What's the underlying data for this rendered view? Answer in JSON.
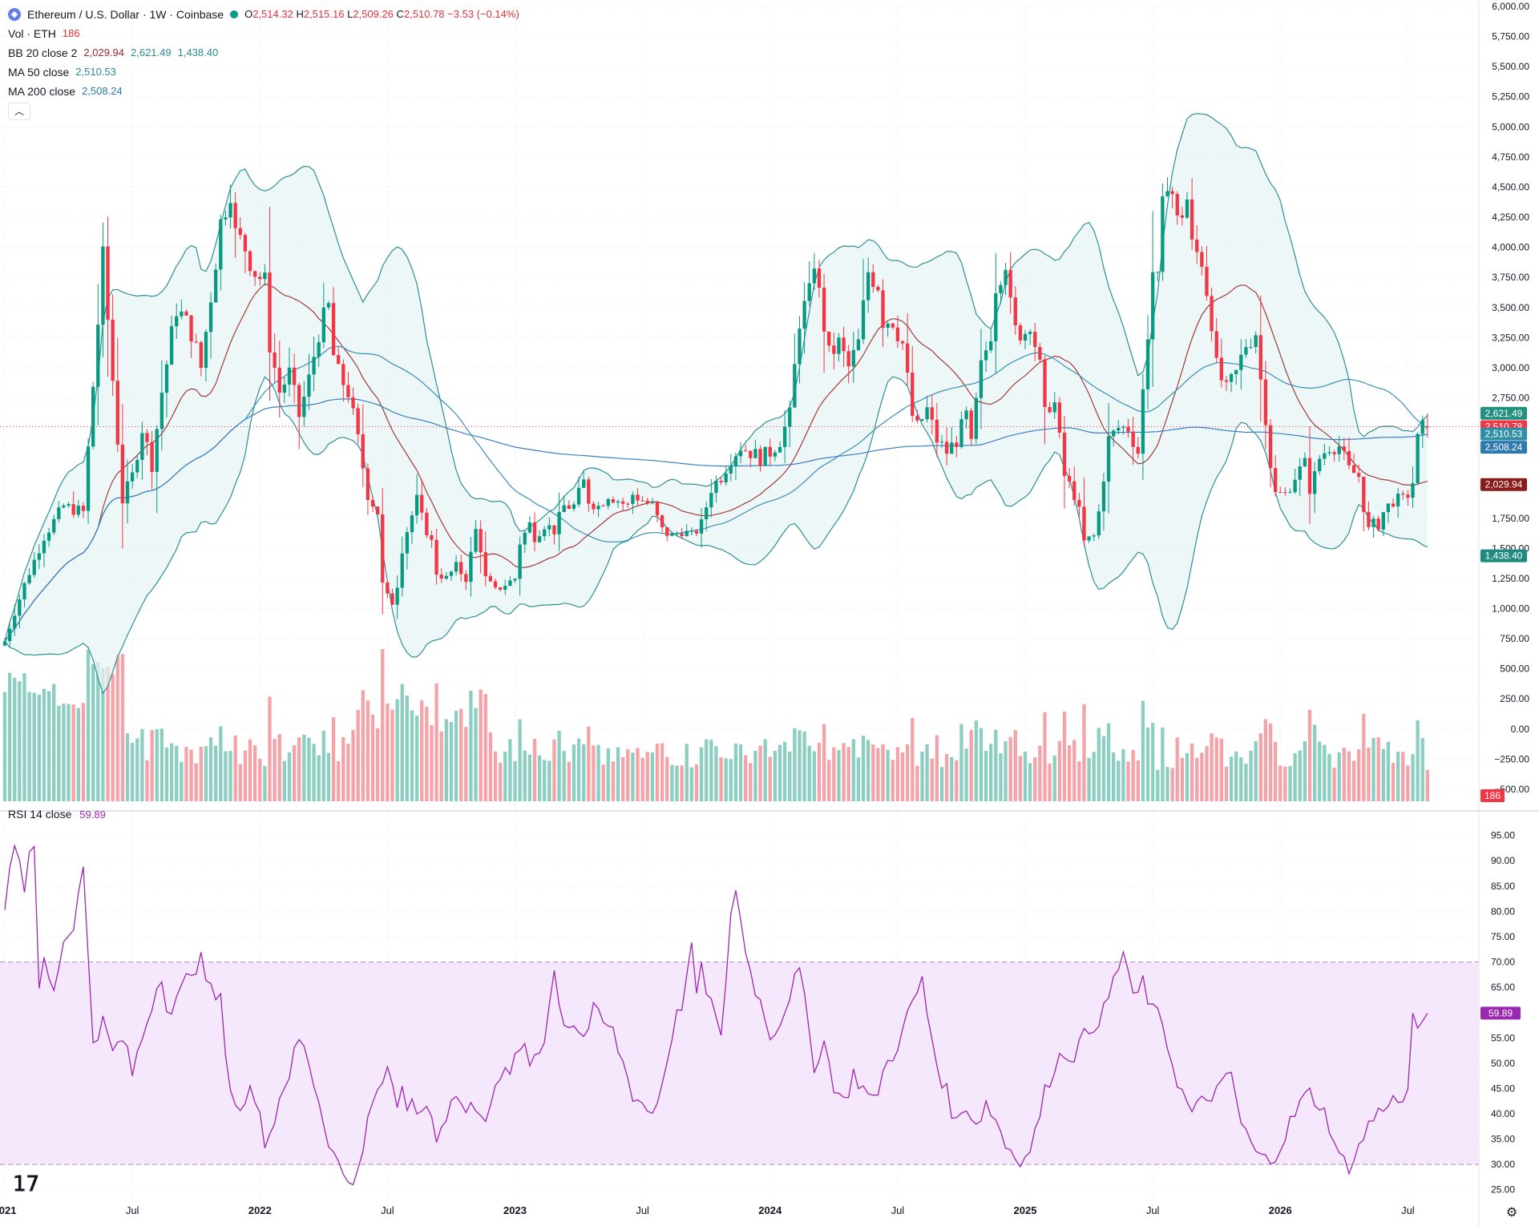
{
  "header": {
    "symbol_title": "Ethereum / U.S. Dollar · 1W · Coinbase",
    "ohlc": {
      "o_label": "O",
      "o": "2,514.32",
      "h_label": "H",
      "h": "2,515.16",
      "l_label": "L",
      "l": "2,509.26",
      "c_label": "C",
      "c": "2,510.78",
      "change": "−3.53 (−0.14%)"
    }
  },
  "indicators": {
    "vol": {
      "label": "Vol · ETH",
      "value": "186"
    },
    "bb": {
      "label": "BB 20 close 2",
      "basis": "2,029.94",
      "upper": "2,621.49",
      "lower": "1,438.40"
    },
    "ma50": {
      "label": "MA 50 close",
      "value": "2,510.53"
    },
    "ma200": {
      "label": "MA 200 close",
      "value": "2,508.24"
    },
    "rsi": {
      "label": "RSI 14 close",
      "value": "59.89"
    }
  },
  "price_badges": [
    {
      "label": "2,621.49",
      "color": "#22917f",
      "value": 2621.49
    },
    {
      "label": "2,510.78",
      "color": "#f23645",
      "value": 2510.78
    },
    {
      "label": "2,510.53",
      "color": "#2f8fa6",
      "value": 2450
    },
    {
      "label": "2,508.24",
      "color": "#2e7ab0",
      "value": 2340
    },
    {
      "label": "2,029.94",
      "color": "#8b1a1a",
      "value": 2029.94
    },
    {
      "label": "1,438.40",
      "color": "#1f8a7e",
      "value": 1438.4
    }
  ],
  "vol_badge": {
    "label": "186",
    "color": "#f23645"
  },
  "rsi_badge": {
    "label": "59.89",
    "color": "#9c27b0"
  },
  "colors": {
    "up": "#089981",
    "down": "#f23645",
    "vol_up": "#8ccfc2",
    "vol_down": "#f4a3a8",
    "bb_band": "#2e8f95",
    "bb_fill": "#e6f4f4",
    "bb_basis": "#a33a3a",
    "ma50": "#3a8fb7",
    "ma200": "#3b7fc0",
    "rsi_line": "#9c27b0",
    "rsi_fill": "#f3e1fb",
    "rsi_bounds": "#b28bc9"
  },
  "chart_data": {
    "type": "candlestick",
    "price_axis": {
      "min": -600,
      "max": 6000,
      "ticks": [
        "6,000.00",
        "5,750.00",
        "5,500.00",
        "5,250.00",
        "5,000.00",
        "4,750.00",
        "4,500.00",
        "4,250.00",
        "4,000.00",
        "3,750.00",
        "3,500.00",
        "3,250.00",
        "3,000.00",
        "2,750.00",
        "1,750.00",
        "1,500.00",
        "1,250.00",
        "1,000.00",
        "750.00",
        "500.00",
        "250.00",
        "0.00",
        "−250.00",
        "−500.00"
      ]
    },
    "rsi_axis": {
      "min": 21,
      "max": 97,
      "ticks": [
        "95.00",
        "90.00",
        "85.00",
        "80.00",
        "75.00",
        "70.00",
        "65.00",
        "60.00",
        "55.00",
        "50.00",
        "45.00",
        "40.00",
        "35.00",
        "30.00",
        "25.00"
      ],
      "upper_band": 70,
      "lower_band": 30
    },
    "x_axis": {
      "labels": [
        {
          "text": "2021",
          "pos": 0
        },
        {
          "text": "Jul",
          "pos": 26
        },
        {
          "text": "2022",
          "pos": 52
        },
        {
          "text": "Jul",
          "pos": 78
        },
        {
          "text": "2023",
          "pos": 104
        },
        {
          "text": "Jul",
          "pos": 130
        },
        {
          "text": "2024",
          "pos": 156
        },
        {
          "text": "Jul",
          "pos": 182
        },
        {
          "text": "2025",
          "pos": 208
        },
        {
          "text": "Jul",
          "pos": 234
        },
        {
          "text": "2026",
          "pos": 260
        },
        {
          "text": "Jul",
          "pos": 286
        }
      ],
      "total_weeks": 298
    },
    "price_keypoints": [
      [
        0,
        730
      ],
      [
        4,
        1200
      ],
      [
        8,
        1600
      ],
      [
        12,
        1850
      ],
      [
        16,
        1800
      ],
      [
        20,
        3900
      ],
      [
        22,
        2900
      ],
      [
        24,
        1900
      ],
      [
        26,
        2100
      ],
      [
        28,
        2500
      ],
      [
        30,
        2200
      ],
      [
        32,
        2800
      ],
      [
        35,
        3500
      ],
      [
        38,
        3300
      ],
      [
        40,
        3000
      ],
      [
        42,
        3600
      ],
      [
        44,
        4200
      ],
      [
        46,
        4500
      ],
      [
        47,
        4100
      ],
      [
        49,
        4000
      ],
      [
        51,
        3800
      ],
      [
        53,
        3700
      ],
      [
        54,
        3200
      ],
      [
        56,
        2800
      ],
      [
        58,
        2950
      ],
      [
        60,
        2600
      ],
      [
        62,
        2900
      ],
      [
        64,
        3300
      ],
      [
        66,
        3500
      ],
      [
        67,
        3100
      ],
      [
        68,
        2950
      ],
      [
        70,
        2800
      ],
      [
        72,
        2400
      ],
      [
        74,
        1950
      ],
      [
        76,
        1800
      ],
      [
        77,
        1200
      ],
      [
        78,
        1100
      ],
      [
        79,
        1050
      ],
      [
        80,
        1200
      ],
      [
        81,
        1500
      ],
      [
        82,
        1650
      ],
      [
        84,
        1900
      ],
      [
        85,
        1750
      ],
      [
        86,
        1650
      ],
      [
        87,
        1550
      ],
      [
        88,
        1300
      ],
      [
        90,
        1250
      ],
      [
        92,
        1350
      ],
      [
        94,
        1250
      ],
      [
        96,
        1650
      ],
      [
        97,
        1500
      ],
      [
        98,
        1250
      ],
      [
        100,
        1150
      ],
      [
        102,
        1200
      ],
      [
        104,
        1250
      ],
      [
        105,
        1550
      ],
      [
        107,
        1700
      ],
      [
        108,
        1600
      ],
      [
        110,
        1700
      ],
      [
        112,
        1650
      ],
      [
        114,
        1850
      ],
      [
        116,
        1850
      ],
      [
        118,
        2050
      ],
      [
        119,
        1900
      ],
      [
        121,
        1850
      ],
      [
        123,
        1950
      ],
      [
        125,
        1900
      ],
      [
        127,
        1850
      ],
      [
        128,
        1950
      ],
      [
        130,
        1900
      ],
      [
        132,
        1850
      ],
      [
        134,
        1650
      ],
      [
        136,
        1600
      ],
      [
        138,
        1650
      ],
      [
        140,
        1600
      ],
      [
        142,
        1700
      ],
      [
        144,
        2000
      ],
      [
        146,
        2100
      ],
      [
        148,
        2250
      ],
      [
        150,
        2350
      ],
      [
        152,
        2300
      ],
      [
        154,
        2250
      ],
      [
        156,
        2300
      ],
      [
        158,
        2400
      ],
      [
        160,
        2600
      ],
      [
        162,
        3400
      ],
      [
        164,
        3600
      ],
      [
        165,
        3900
      ],
      [
        166,
        3600
      ],
      [
        168,
        3100
      ],
      [
        170,
        3200
      ],
      [
        172,
        3000
      ],
      [
        174,
        3200
      ],
      [
        176,
        3800
      ],
      [
        178,
        3700
      ],
      [
        179,
        3400
      ],
      [
        181,
        3400
      ],
      [
        183,
        3200
      ],
      [
        184,
        2900
      ],
      [
        185,
        2600
      ],
      [
        186,
        2500
      ],
      [
        188,
        2650
      ],
      [
        190,
        2400
      ],
      [
        192,
        2300
      ],
      [
        194,
        2400
      ],
      [
        196,
        2600
      ],
      [
        197,
        2350
      ],
      [
        198,
        2700
      ],
      [
        199,
        3000
      ],
      [
        201,
        3300
      ],
      [
        202,
        3700
      ],
      [
        204,
        3900
      ],
      [
        205,
        3500
      ],
      [
        206,
        3300
      ],
      [
        208,
        3300
      ],
      [
        209,
        3400
      ],
      [
        210,
        3200
      ],
      [
        211,
        3000
      ],
      [
        212,
        2600
      ],
      [
        213,
        2700
      ],
      [
        214,
        2700
      ],
      [
        216,
        2100
      ],
      [
        218,
        1950
      ],
      [
        219,
        1800
      ],
      [
        220,
        1550
      ],
      [
        222,
        1600
      ],
      [
        223,
        1800
      ],
      [
        225,
        2400
      ],
      [
        227,
        2500
      ],
      [
        229,
        2500
      ],
      [
        231,
        2300
      ],
      [
        232,
        2800
      ],
      [
        234,
        3800
      ],
      [
        235,
        3700
      ],
      [
        236,
        4300
      ],
      [
        237,
        4600
      ],
      [
        238,
        4450
      ],
      [
        239,
        4200
      ],
      [
        241,
        4400
      ],
      [
        242,
        4000
      ],
      [
        244,
        3900
      ],
      [
        246,
        3400
      ],
      [
        247,
        3000
      ],
      [
        248,
        2900
      ],
      [
        249,
        2800
      ],
      [
        251,
        2950
      ],
      [
        253,
        3200
      ],
      [
        255,
        3300
      ],
      [
        256,
        2900
      ],
      [
        257,
        2600
      ],
      [
        258,
        2200
      ],
      [
        259,
        1950
      ],
      [
        261,
        1950
      ],
      [
        263,
        2100
      ],
      [
        265,
        2200
      ],
      [
        266,
        2000
      ],
      [
        267,
        2100
      ],
      [
        268,
        2250
      ],
      [
        270,
        2350
      ],
      [
        272,
        2350
      ],
      [
        274,
        2150
      ],
      [
        276,
        2100
      ],
      [
        277,
        1850
      ],
      [
        278,
        1650
      ],
      [
        279,
        1700
      ],
      [
        280,
        1700
      ],
      [
        281,
        1800
      ],
      [
        283,
        1900
      ],
      [
        285,
        1900
      ],
      [
        286,
        1950
      ],
      [
        287,
        2050
      ],
      [
        288,
        2400
      ],
      [
        289,
        2500
      ],
      [
        290,
        2510
      ]
    ],
    "rsi_keypoints": [
      [
        0,
        80
      ],
      [
        1,
        90
      ],
      [
        2,
        93
      ],
      [
        3,
        91
      ],
      [
        4,
        85
      ],
      [
        5,
        90
      ],
      [
        6,
        92
      ],
      [
        7,
        65
      ],
      [
        8,
        70
      ],
      [
        10,
        65
      ],
      [
        12,
        74
      ],
      [
        14,
        78
      ],
      [
        16,
        88
      ],
      [
        18,
        55
      ],
      [
        20,
        58
      ],
      [
        22,
        52
      ],
      [
        24,
        55
      ],
      [
        26,
        48
      ],
      [
        28,
        55
      ],
      [
        30,
        62
      ],
      [
        32,
        68
      ],
      [
        33,
        62
      ],
      [
        34,
        60
      ],
      [
        36,
        64
      ],
      [
        38,
        69
      ],
      [
        40,
        70
      ],
      [
        42,
        64
      ],
      [
        44,
        62
      ],
      [
        46,
        45
      ],
      [
        48,
        40
      ],
      [
        50,
        44
      ],
      [
        52,
        42
      ],
      [
        53,
        35
      ],
      [
        55,
        38
      ],
      [
        56,
        44
      ],
      [
        58,
        48
      ],
      [
        60,
        55
      ],
      [
        62,
        50
      ],
      [
        64,
        43
      ],
      [
        66,
        35
      ],
      [
        68,
        30
      ],
      [
        70,
        26
      ],
      [
        72,
        28
      ],
      [
        74,
        40
      ],
      [
        76,
        45
      ],
      [
        78,
        48
      ],
      [
        80,
        40
      ],
      [
        81,
        46
      ],
      [
        82,
        42
      ],
      [
        84,
        40
      ],
      [
        86,
        42
      ],
      [
        88,
        36
      ],
      [
        90,
        40
      ],
      [
        92,
        44
      ],
      [
        94,
        40
      ],
      [
        96,
        42
      ],
      [
        98,
        40
      ],
      [
        100,
        44
      ],
      [
        102,
        48
      ],
      [
        104,
        50
      ],
      [
        106,
        54
      ],
      [
        107,
        50
      ],
      [
        108,
        52
      ],
      [
        110,
        55
      ],
      [
        112,
        68
      ],
      [
        114,
        58
      ],
      [
        116,
        58
      ],
      [
        118,
        55
      ],
      [
        120,
        60
      ],
      [
        122,
        58
      ],
      [
        124,
        56
      ],
      [
        126,
        50
      ],
      [
        128,
        44
      ],
      [
        130,
        42
      ],
      [
        132,
        40
      ],
      [
        134,
        46
      ],
      [
        136,
        56
      ],
      [
        138,
        62
      ],
      [
        140,
        72
      ],
      [
        141,
        64
      ],
      [
        142,
        68
      ],
      [
        144,
        62
      ],
      [
        146,
        54
      ],
      [
        148,
        80
      ],
      [
        149,
        84
      ],
      [
        150,
        78
      ],
      [
        152,
        68
      ],
      [
        154,
        62
      ],
      [
        156,
        56
      ],
      [
        158,
        58
      ],
      [
        160,
        64
      ],
      [
        162,
        68
      ],
      [
        163,
        62
      ],
      [
        165,
        50
      ],
      [
        167,
        54
      ],
      [
        169,
        46
      ],
      [
        171,
        42
      ],
      [
        173,
        48
      ],
      [
        175,
        45
      ],
      [
        177,
        42
      ],
      [
        179,
        48
      ],
      [
        181,
        52
      ],
      [
        183,
        56
      ],
      [
        185,
        62
      ],
      [
        187,
        66
      ],
      [
        188,
        60
      ],
      [
        190,
        50
      ],
      [
        192,
        44
      ],
      [
        194,
        38
      ],
      [
        196,
        42
      ],
      [
        198,
        38
      ],
      [
        200,
        42
      ],
      [
        202,
        39
      ],
      [
        204,
        34
      ],
      [
        206,
        32
      ],
      [
        208,
        31
      ],
      [
        210,
        36
      ],
      [
        212,
        44
      ],
      [
        214,
        50
      ],
      [
        216,
        52
      ],
      [
        218,
        52
      ],
      [
        220,
        55
      ],
      [
        222,
        58
      ],
      [
        224,
        60
      ],
      [
        226,
        66
      ],
      [
        228,
        72
      ],
      [
        229,
        68
      ],
      [
        230,
        62
      ],
      [
        232,
        66
      ],
      [
        234,
        60
      ],
      [
        236,
        58
      ],
      [
        238,
        50
      ],
      [
        240,
        44
      ],
      [
        242,
        40
      ],
      [
        244,
        42
      ],
      [
        246,
        44
      ],
      [
        248,
        45
      ],
      [
        250,
        48
      ],
      [
        252,
        38
      ],
      [
        254,
        34
      ],
      [
        256,
        31
      ],
      [
        258,
        31
      ],
      [
        260,
        34
      ],
      [
        262,
        38
      ],
      [
        264,
        42
      ],
      [
        266,
        44
      ],
      [
        268,
        42
      ],
      [
        270,
        38
      ],
      [
        272,
        31
      ],
      [
        274,
        30
      ],
      [
        276,
        33
      ],
      [
        278,
        38
      ],
      [
        280,
        40
      ],
      [
        282,
        43
      ],
      [
        284,
        42
      ],
      [
        286,
        44
      ],
      [
        287,
        58
      ],
      [
        288,
        57
      ],
      [
        289,
        60
      ],
      [
        290,
        60
      ]
    ]
  }
}
